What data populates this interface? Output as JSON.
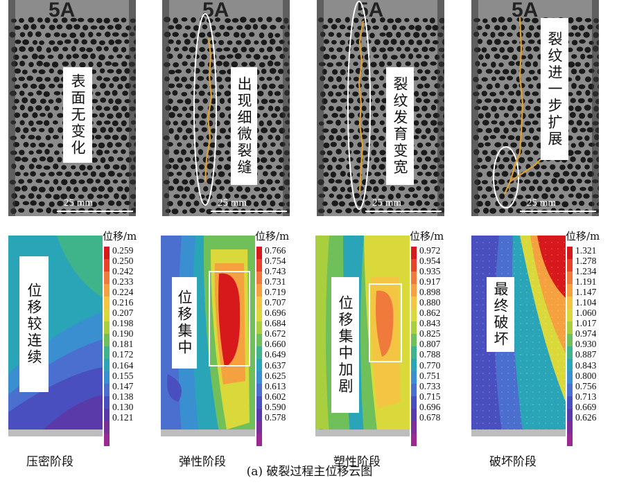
{
  "photos": [
    {
      "label": "表面无变化",
      "scale": "25 mm",
      "annotation": "none"
    },
    {
      "label": "出现细微裂缝",
      "scale": "25 mm",
      "annotation": "ellipse+crack"
    },
    {
      "label": "裂纹发育变宽",
      "scale": "25 mm",
      "annotation": "ellipse+crack"
    },
    {
      "label": "裂纹进一步扩展",
      "scale": "25 mm",
      "annotation": "ellipse+crack"
    }
  ],
  "specimen_mark": "5A",
  "maps": [
    {
      "label": "位移较连续",
      "unit": "位移/m",
      "ticks": [
        "0.259",
        "0.250",
        "0.242",
        "0.233",
        "0.224",
        "0.216",
        "0.207",
        "0.198",
        "0.190",
        "0.181",
        "0.172",
        "0.164",
        "0.155",
        "0.147",
        "0.138",
        "0.130",
        "0.121"
      ]
    },
    {
      "label": "位移集中",
      "unit": "位移/m",
      "ticks": [
        "0.766",
        "0.754",
        "0.743",
        "0.731",
        "0.719",
        "0.707",
        "0.696",
        "0.684",
        "0.672",
        "0.660",
        "0.649",
        "0.637",
        "0.625",
        "0.613",
        "0.602",
        "0.590",
        "0.578"
      ]
    },
    {
      "label": "位移集中加剧",
      "unit": "位移/m",
      "ticks": [
        "0.972",
        "0.954",
        "0.935",
        "0.917",
        "0.898",
        "0.880",
        "0.862",
        "0.843",
        "0.825",
        "0.807",
        "0.788",
        "0.770",
        "0.751",
        "0.733",
        "0.715",
        "0.696",
        "0.678"
      ]
    },
    {
      "label": "最终破坏",
      "unit": "位移/m",
      "ticks": [
        "1.321",
        "1.278",
        "1.234",
        "1.191",
        "1.147",
        "1.104",
        "1.060",
        "1.017",
        "0.974",
        "0.930",
        "0.887",
        "0.843",
        "0.800",
        "0.756",
        "0.713",
        "0.669",
        "0.626"
      ]
    }
  ],
  "stages": [
    "压密阶段",
    "弹性阶段",
    "塑性阶段",
    "破坏阶段"
  ],
  "caption": "(a) 破裂过程主位移云图",
  "colormap": [
    "#d7191c",
    "#e8432a",
    "#f07a3c",
    "#f5a13f",
    "#f4c542",
    "#d9d93c",
    "#a9cf3f",
    "#6fc05a",
    "#3fb38a",
    "#2aa5b8",
    "#3a8fd0",
    "#4a6fcf",
    "#4a4fbf",
    "#5a3aa8",
    "#7a2f9a",
    "#9a2a92"
  ],
  "accent": {
    "crack": "#e0a030",
    "ellipse": "#ffffff"
  }
}
